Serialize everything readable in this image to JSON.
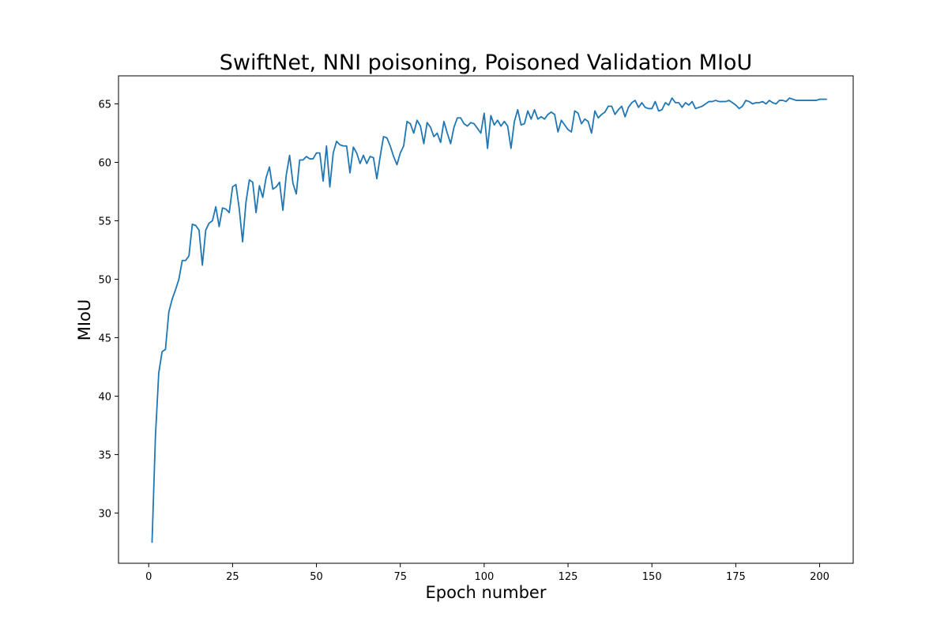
{
  "chart_data": {
    "type": "line",
    "title": "SwiftNet, NNI poisoning, Poisoned Validation MIoU",
    "xlabel": "Epoch number",
    "ylabel": "MIoU",
    "xlim": [
      -9,
      210
    ],
    "ylim": [
      25.7,
      67.4
    ],
    "x_ticks": [
      0,
      25,
      50,
      75,
      100,
      125,
      150,
      175,
      200
    ],
    "y_ticks": [
      30,
      35,
      40,
      45,
      50,
      55,
      60,
      65
    ],
    "grid": false,
    "color": "#1f77b4",
    "series": [
      {
        "x_start": 1,
        "x_step": 1,
        "values": [
          27.5,
          36.5,
          42.0,
          43.8,
          44.0,
          47.2,
          48.3,
          49.1,
          50.0,
          51.6,
          51.6,
          52.0,
          54.7,
          54.6,
          54.2,
          51.2,
          54.2,
          54.8,
          55.0,
          56.2,
          54.5,
          56.1,
          56.0,
          55.7,
          57.9,
          58.1,
          56.0,
          53.2,
          56.6,
          58.5,
          58.3,
          55.7,
          58.0,
          57.0,
          58.7,
          59.6,
          57.7,
          57.9,
          58.3,
          55.9,
          58.9,
          60.6,
          58.2,
          57.3,
          60.2,
          60.2,
          60.5,
          60.3,
          60.3,
          60.8,
          60.8,
          58.4,
          61.4,
          57.9,
          60.8,
          61.8,
          61.5,
          61.4,
          61.4,
          59.1,
          61.3,
          60.8,
          59.9,
          60.6,
          59.9,
          60.5,
          60.4,
          58.6,
          60.5,
          62.2,
          62.1,
          61.4,
          60.5,
          59.8,
          60.8,
          61.4,
          63.5,
          63.3,
          62.5,
          63.6,
          63.1,
          61.6,
          63.4,
          63.0,
          62.2,
          62.5,
          61.7,
          63.5,
          62.5,
          61.6,
          63.0,
          63.8,
          63.8,
          63.3,
          63.1,
          63.4,
          63.3,
          62.9,
          62.5,
          64.2,
          61.2,
          64.0,
          63.2,
          63.6,
          63.1,
          63.5,
          63.1,
          61.2,
          63.5,
          64.5,
          63.2,
          63.3,
          64.4,
          63.7,
          64.5,
          63.7,
          63.9,
          63.7,
          64.1,
          64.3,
          64.1,
          62.6,
          63.6,
          63.2,
          62.8,
          62.6,
          64.4,
          64.2,
          63.3,
          63.7,
          63.5,
          62.5,
          64.4,
          63.8,
          64.1,
          64.3,
          64.8,
          64.8,
          64.1,
          64.5,
          64.8,
          63.9,
          64.7,
          65.1,
          65.3,
          64.7,
          65.1,
          64.7,
          64.6,
          64.6,
          65.2,
          64.4,
          64.5,
          65.1,
          64.9,
          65.5,
          65.1,
          65.1,
          64.7,
          65.1,
          64.9,
          65.2,
          64.6,
          64.7,
          64.8,
          65.0,
          65.2,
          65.2,
          65.3,
          65.2,
          65.2,
          65.2,
          65.3,
          65.1,
          64.9,
          64.6,
          64.8,
          65.3,
          65.2,
          65.0,
          65.1,
          65.1,
          65.2,
          65.0,
          65.3,
          65.1,
          65.0,
          65.3,
          65.3,
          65.2,
          65.5,
          65.4,
          65.3,
          65.3,
          65.3,
          65.3,
          65.3,
          65.3,
          65.3,
          65.4,
          65.4,
          65.4
        ]
      }
    ]
  }
}
